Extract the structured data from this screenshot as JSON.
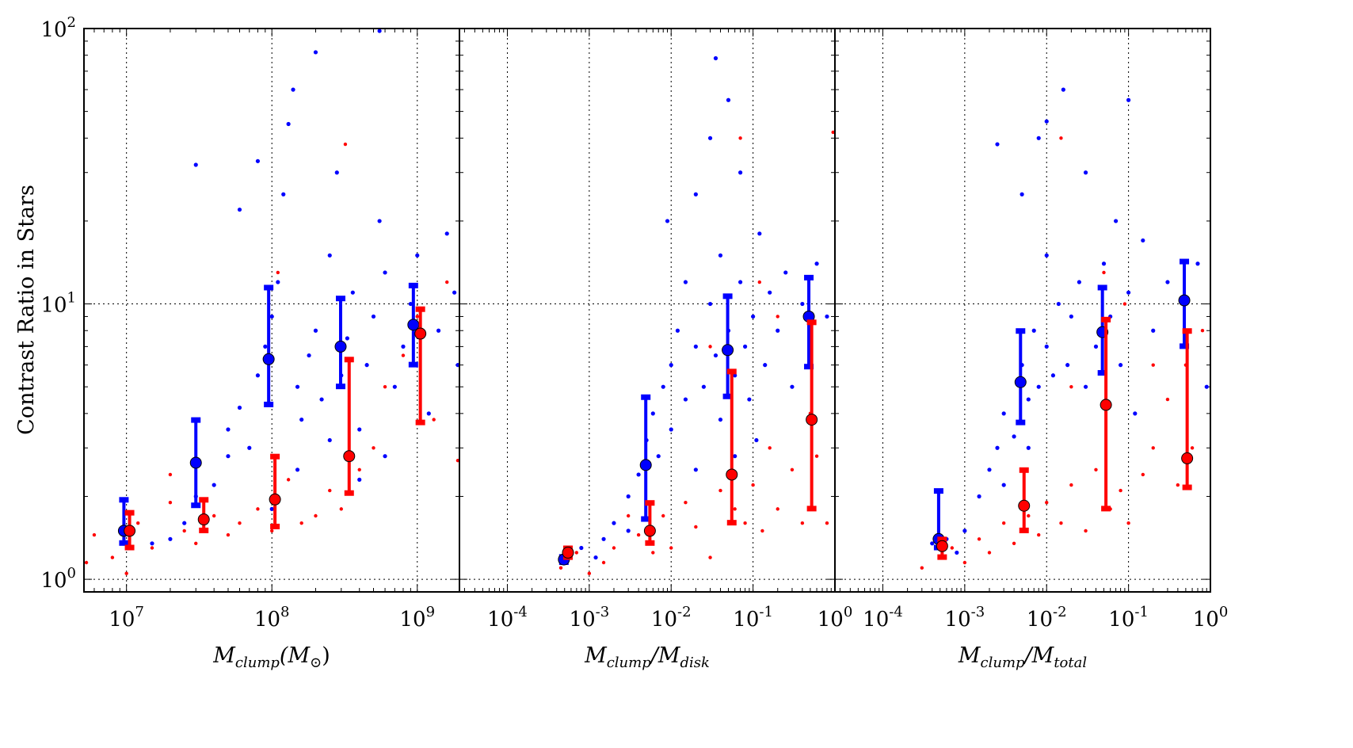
{
  "chart_data": [
    {
      "type": "scatter",
      "ylabel": "Contrast Ratio in Stars",
      "xlabel": {
        "base": "M",
        "sub": "clump",
        "tail": "(M",
        "sub2": "⊙",
        "end": ")"
      },
      "xscale": "log",
      "yscale": "log",
      "xlim": [
        5100000.0,
        1950000000.0
      ],
      "ylim": [
        0.9,
        100
      ],
      "grid": true,
      "x_ticks": [
        {
          "value": 10000000.0,
          "base": "10",
          "exp": "7"
        },
        {
          "value": 100000000.0,
          "base": "10",
          "exp": "8"
        },
        {
          "value": 1000000000.0,
          "base": "10",
          "exp": "9"
        }
      ],
      "y_ticks": [
        {
          "value": 1,
          "base": "10",
          "exp": "0"
        },
        {
          "value": 10,
          "base": "10",
          "exp": "1"
        },
        {
          "value": 100,
          "base": "10",
          "exp": "2"
        }
      ],
      "colors": {
        "blue": "#0000ff",
        "red": "#ff0000"
      },
      "scatter_blue": [
        [
          15000000.0,
          1.35
        ],
        [
          20000000.0,
          1.4
        ],
        [
          25000000.0,
          1.6
        ],
        [
          30000000.0,
          2.0
        ],
        [
          40000000.0,
          2.2
        ],
        [
          50000000.0,
          2.8
        ],
        [
          50000000.0,
          3.5
        ],
        [
          60000000.0,
          4.2
        ],
        [
          70000000.0,
          3.0
        ],
        [
          80000000.0,
          5.5
        ],
        [
          90000000.0,
          7
        ],
        [
          100000000.0,
          9
        ],
        [
          110000000.0,
          12
        ],
        [
          120000000.0,
          25
        ],
        [
          130000000.0,
          45
        ],
        [
          140000000.0,
          60
        ],
        [
          150000000.0,
          5
        ],
        [
          160000000.0,
          3.8
        ],
        [
          180000000.0,
          6.5
        ],
        [
          200000000.0,
          8
        ],
        [
          220000000.0,
          4.5
        ],
        [
          250000000.0,
          15
        ],
        [
          280000000.0,
          30
        ],
        [
          300000000.0,
          5.5
        ],
        [
          330000000.0,
          7.5
        ],
        [
          360000000.0,
          11
        ],
        [
          400000000.0,
          3.5
        ],
        [
          450000000.0,
          6
        ],
        [
          500000000.0,
          9
        ],
        [
          550000000.0,
          20
        ],
        [
          600000000.0,
          13
        ],
        [
          700000000.0,
          5
        ],
        [
          800000000.0,
          7
        ],
        [
          900000000.0,
          10
        ],
        [
          1000000000.0,
          15
        ],
        [
          1200000000.0,
          4
        ],
        [
          1400000000.0,
          8
        ],
        [
          1600000000.0,
          18
        ],
        [
          1800000000.0,
          11
        ],
        [
          1900000000.0,
          6
        ],
        [
          60000000.0,
          22
        ],
        [
          80000000.0,
          33
        ],
        [
          200000000.0,
          82
        ],
        [
          550000000.0,
          98
        ],
        [
          30000000.0,
          32
        ],
        [
          150000000.0,
          2.5
        ],
        [
          250000000.0,
          3.2
        ],
        [
          400000000.0,
          2.3
        ],
        [
          100000000.0,
          1.8
        ],
        [
          600000000.0,
          2.8
        ]
      ],
      "scatter_red": [
        [
          5300000.0,
          1.15
        ],
        [
          6000000.0,
          1.45
        ],
        [
          8000000.0,
          1.2
        ],
        [
          10000000.0,
          1.05
        ],
        [
          12000000.0,
          1.6
        ],
        [
          15000000.0,
          1.3
        ],
        [
          20000000.0,
          1.9
        ],
        [
          25000000.0,
          1.5
        ],
        [
          30000000.0,
          1.35
        ],
        [
          40000000.0,
          1.7
        ],
        [
          50000000.0,
          1.45
        ],
        [
          60000000.0,
          1.6
        ],
        [
          80000000.0,
          1.8
        ],
        [
          100000000.0,
          1.5
        ],
        [
          130000000.0,
          2.3
        ],
        [
          160000000.0,
          1.6
        ],
        [
          200000000.0,
          1.7
        ],
        [
          250000000.0,
          2.1
        ],
        [
          300000000.0,
          1.8
        ],
        [
          400000000.0,
          2.5
        ],
        [
          500000000.0,
          3
        ],
        [
          600000000.0,
          5
        ],
        [
          800000000.0,
          6.5
        ],
        [
          1000000000.0,
          9
        ],
        [
          1300000000.0,
          3.8
        ],
        [
          1600000000.0,
          12
        ],
        [
          1900000000.0,
          2.7
        ],
        [
          320000000.0,
          38
        ],
        [
          110000000.0,
          13
        ],
        [
          20000000.0,
          2.4
        ]
      ],
      "binned_blue": [
        {
          "x": 9600000.0,
          "y": 1.5,
          "lo": 1.35,
          "hi": 1.95
        },
        {
          "x": 30000000.0,
          "y": 2.65,
          "lo": 1.85,
          "hi": 3.8
        },
        {
          "x": 95000000.0,
          "y": 6.3,
          "lo": 4.3,
          "hi": 11.5
        },
        {
          "x": 297000000.0,
          "y": 7.0,
          "lo": 5.0,
          "hi": 10.5
        },
        {
          "x": 940000000.0,
          "y": 8.4,
          "lo": 6.0,
          "hi": 11.7
        }
      ],
      "binned_red": [
        {
          "x": 10500000.0,
          "y": 1.5,
          "lo": 1.3,
          "hi": 1.75
        },
        {
          "x": 34000000.0,
          "y": 1.65,
          "lo": 1.5,
          "hi": 1.95
        },
        {
          "x": 105000000.0,
          "y": 1.95,
          "lo": 1.55,
          "hi": 2.8
        },
        {
          "x": 340000000.0,
          "y": 2.8,
          "lo": 2.05,
          "hi": 6.3
        },
        {
          "x": 1050000000.0,
          "y": 7.8,
          "lo": 3.7,
          "hi": 9.6
        }
      ]
    },
    {
      "type": "scatter",
      "xlabel": {
        "base": "M",
        "sub": "clump",
        "tail": "/M",
        "sub2": "disk",
        "end": ""
      },
      "xscale": "log",
      "yscale": "log",
      "xlim": [
        2.6e-05,
        1
      ],
      "ylim": [
        0.9,
        100
      ],
      "grid": true,
      "x_ticks": [
        {
          "value": 0.0001,
          "base": "10",
          "exp": "-4"
        },
        {
          "value": 0.001,
          "base": "10",
          "exp": "-3"
        },
        {
          "value": 0.01,
          "base": "10",
          "exp": "-2"
        },
        {
          "value": 0.1,
          "base": "10",
          "exp": "-1"
        },
        {
          "value": 1,
          "base": "10",
          "exp": "0"
        }
      ],
      "scatter_blue": [
        [
          0.0005,
          1.15
        ],
        [
          0.0008,
          1.3
        ],
        [
          0.0012,
          1.2
        ],
        [
          0.0015,
          1.4
        ],
        [
          0.002,
          1.6
        ],
        [
          0.003,
          1.5
        ],
        [
          0.003,
          2.0
        ],
        [
          0.004,
          2.4
        ],
        [
          0.005,
          3.2
        ],
        [
          0.006,
          4
        ],
        [
          0.007,
          2.8
        ],
        [
          0.008,
          5
        ],
        [
          0.01,
          6
        ],
        [
          0.01,
          3.5
        ],
        [
          0.012,
          8
        ],
        [
          0.015,
          4.5
        ],
        [
          0.015,
          12
        ],
        [
          0.02,
          7
        ],
        [
          0.02,
          25
        ],
        [
          0.025,
          5
        ],
        [
          0.03,
          10
        ],
        [
          0.03,
          40
        ],
        [
          0.035,
          6.5
        ],
        [
          0.04,
          15
        ],
        [
          0.04,
          3.8
        ],
        [
          0.05,
          8
        ],
        [
          0.05,
          55
        ],
        [
          0.06,
          5.5
        ],
        [
          0.07,
          12
        ],
        [
          0.07,
          30
        ],
        [
          0.08,
          7
        ],
        [
          0.09,
          4.5
        ],
        [
          0.1,
          9
        ],
        [
          0.12,
          18
        ],
        [
          0.14,
          6
        ],
        [
          0.16,
          11
        ],
        [
          0.2,
          8
        ],
        [
          0.25,
          13
        ],
        [
          0.3,
          5
        ],
        [
          0.4,
          10
        ],
        [
          0.5,
          7
        ],
        [
          0.6,
          14
        ],
        [
          0.8,
          9
        ],
        [
          0.02,
          2.5
        ],
        [
          0.009,
          20
        ],
        [
          0.035,
          78
        ],
        [
          0.06,
          2.8
        ],
        [
          0.11,
          3.2
        ]
      ],
      "scatter_red": [
        [
          0.00045,
          1.1
        ],
        [
          0.0007,
          1.25
        ],
        [
          0.001,
          1.05
        ],
        [
          0.0015,
          1.15
        ],
        [
          0.002,
          1.3
        ],
        [
          0.003,
          1.7
        ],
        [
          0.004,
          1.45
        ],
        [
          0.006,
          1.25
        ],
        [
          0.008,
          1.7
        ],
        [
          0.01,
          1.3
        ],
        [
          0.015,
          1.9
        ],
        [
          0.02,
          1.55
        ],
        [
          0.03,
          1.2
        ],
        [
          0.04,
          2.1
        ],
        [
          0.06,
          1.8
        ],
        [
          0.08,
          1.6
        ],
        [
          0.1,
          2.2
        ],
        [
          0.13,
          1.5
        ],
        [
          0.16,
          3
        ],
        [
          0.2,
          1.8
        ],
        [
          0.3,
          2.5
        ],
        [
          0.4,
          1.6
        ],
        [
          0.5,
          4
        ],
        [
          0.6,
          2.8
        ],
        [
          0.8,
          1.6
        ],
        [
          0.07,
          40
        ],
        [
          0.12,
          12
        ],
        [
          0.2,
          9
        ],
        [
          0.03,
          7
        ],
        [
          0.95,
          42
        ]
      ],
      "binned_blue": [
        {
          "x": 0.00049,
          "y": 1.18,
          "lo": 1.15,
          "hi": 1.21
        },
        {
          "x": 0.0049,
          "y": 2.6,
          "lo": 1.65,
          "hi": 4.6
        },
        {
          "x": 0.049,
          "y": 6.8,
          "lo": 4.6,
          "hi": 10.7
        },
        {
          "x": 0.48,
          "y": 9.0,
          "lo": 5.9,
          "hi": 12.5
        }
      ],
      "binned_red": [
        {
          "x": 0.00055,
          "y": 1.25,
          "lo": 1.2,
          "hi": 1.3
        },
        {
          "x": 0.0055,
          "y": 1.5,
          "lo": 1.35,
          "hi": 1.9
        },
        {
          "x": 0.055,
          "y": 2.4,
          "lo": 1.6,
          "hi": 5.7
        },
        {
          "x": 0.52,
          "y": 3.8,
          "lo": 1.8,
          "hi": 8.6
        }
      ]
    },
    {
      "type": "scatter",
      "xlabel": {
        "base": "M",
        "sub": "clump",
        "tail": "/M",
        "sub2": "total",
        "end": ""
      },
      "xscale": "log",
      "yscale": "log",
      "xlim": [
        2.6e-05,
        1
      ],
      "ylim": [
        0.9,
        100
      ],
      "grid": true,
      "x_ticks": [
        {
          "value": 0.0001,
          "base": "10",
          "exp": "-4"
        },
        {
          "value": 0.001,
          "base": "10",
          "exp": "-3"
        },
        {
          "value": 0.01,
          "base": "10",
          "exp": "-2"
        },
        {
          "value": 0.1,
          "base": "10",
          "exp": "-1"
        },
        {
          "value": 1,
          "base": "10",
          "exp": "0"
        }
      ],
      "scatter_blue": [
        [
          0.0004,
          1.35
        ],
        [
          0.0006,
          1.4
        ],
        [
          0.0008,
          1.25
        ],
        [
          0.001,
          1.5
        ],
        [
          0.0015,
          2
        ],
        [
          0.002,
          2.5
        ],
        [
          0.0025,
          3
        ],
        [
          0.003,
          4
        ],
        [
          0.004,
          3.3
        ],
        [
          0.005,
          6
        ],
        [
          0.005,
          25
        ],
        [
          0.006,
          4.5
        ],
        [
          0.007,
          8
        ],
        [
          0.008,
          5
        ],
        [
          0.008,
          40
        ],
        [
          0.01,
          7
        ],
        [
          0.01,
          15
        ],
        [
          0.012,
          5.5
        ],
        [
          0.014,
          10
        ],
        [
          0.016,
          60
        ],
        [
          0.018,
          6
        ],
        [
          0.02,
          9
        ],
        [
          0.025,
          12
        ],
        [
          0.03,
          5
        ],
        [
          0.03,
          30
        ],
        [
          0.04,
          7
        ],
        [
          0.05,
          14
        ],
        [
          0.06,
          9
        ],
        [
          0.07,
          20
        ],
        [
          0.08,
          6
        ],
        [
          0.1,
          11
        ],
        [
          0.12,
          4
        ],
        [
          0.15,
          17
        ],
        [
          0.2,
          8
        ],
        [
          0.3,
          12
        ],
        [
          0.5,
          7
        ],
        [
          0.7,
          14
        ],
        [
          0.9,
          5
        ],
        [
          0.01,
          46
        ],
        [
          0.0025,
          38
        ],
        [
          0.1,
          55
        ],
        [
          0.003,
          2.2
        ],
        [
          0.006,
          3
        ]
      ],
      "scatter_red": [
        [
          0.0003,
          1.1
        ],
        [
          0.0005,
          1.2
        ],
        [
          0.0007,
          1.3
        ],
        [
          0.001,
          1.15
        ],
        [
          0.0015,
          1.4
        ],
        [
          0.002,
          1.25
        ],
        [
          0.003,
          1.6
        ],
        [
          0.004,
          1.35
        ],
        [
          0.006,
          1.7
        ],
        [
          0.008,
          1.45
        ],
        [
          0.01,
          1.9
        ],
        [
          0.015,
          1.6
        ],
        [
          0.02,
          2.2
        ],
        [
          0.03,
          1.5
        ],
        [
          0.04,
          2.5
        ],
        [
          0.06,
          1.8
        ],
        [
          0.08,
          2.1
        ],
        [
          0.1,
          1.6
        ],
        [
          0.15,
          2.4
        ],
        [
          0.2,
          3
        ],
        [
          0.3,
          4.5
        ],
        [
          0.4,
          2.2
        ],
        [
          0.5,
          6
        ],
        [
          0.6,
          3
        ],
        [
          0.8,
          8
        ],
        [
          0.02,
          5
        ],
        [
          0.05,
          13
        ],
        [
          0.015,
          40
        ],
        [
          0.09,
          10
        ],
        [
          0.2,
          6
        ]
      ],
      "binned_blue": [
        {
          "x": 0.00048,
          "y": 1.4,
          "lo": 1.3,
          "hi": 2.1
        },
        {
          "x": 0.0048,
          "y": 5.2,
          "lo": 3.7,
          "hi": 8.0
        },
        {
          "x": 0.048,
          "y": 7.9,
          "lo": 5.6,
          "hi": 11.5
        },
        {
          "x": 0.48,
          "y": 10.3,
          "lo": 7.0,
          "hi": 14.3
        }
      ],
      "binned_red": [
        {
          "x": 0.00053,
          "y": 1.32,
          "lo": 1.2,
          "hi": 1.4
        },
        {
          "x": 0.0053,
          "y": 1.85,
          "lo": 1.5,
          "hi": 2.5
        },
        {
          "x": 0.053,
          "y": 4.3,
          "lo": 1.8,
          "hi": 8.8
        },
        {
          "x": 0.52,
          "y": 2.75,
          "lo": 2.15,
          "hi": 8.0
        }
      ]
    }
  ]
}
